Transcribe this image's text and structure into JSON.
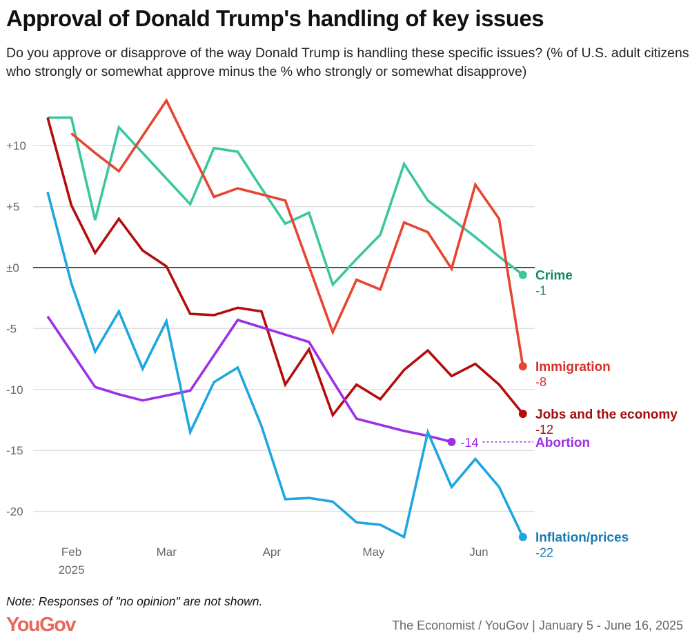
{
  "title": "Approval of Donald Trump's handling of key issues",
  "subtitle": "Do you approve or disapprove of the way Donald Trump is handling these specific issues? (% of U.S. adult citizens who strongly or somewhat approve minus the % who strongly or somewhat disapprove)",
  "note": "Note: Responses of \"no opinion\" are not shown.",
  "logo": "YouGov",
  "source": "The Economist / YouGov | January 5 - June 16, 2025",
  "chart_data": {
    "type": "line",
    "title": "Approval of Donald Trump's handling of key issues",
    "xlabel": "",
    "ylabel": "",
    "ylim": [
      -23,
      14
    ],
    "grid": true,
    "legend": "direct labels at line ends (right)",
    "y_ticks": [
      {
        "value": 10,
        "label": "+10"
      },
      {
        "value": 5,
        "label": "+5"
      },
      {
        "value": 0,
        "label": "±0"
      },
      {
        "value": -5,
        "label": "-5"
      },
      {
        "value": -10,
        "label": "-10"
      },
      {
        "value": -15,
        "label": "-15"
      },
      {
        "value": -20,
        "label": "-20"
      }
    ],
    "x_ticks": [
      {
        "date": "2025-02-01",
        "label": "Feb",
        "sublabel": "2025"
      },
      {
        "date": "2025-03-01",
        "label": "Mar"
      },
      {
        "date": "2025-04-01",
        "label": "Apr"
      },
      {
        "date": "2025-05-01",
        "label": "May"
      },
      {
        "date": "2025-06-01",
        "label": "Jun"
      }
    ],
    "x": [
      "2025-01-26",
      "2025-02-02",
      "2025-02-09",
      "2025-02-16",
      "2025-02-23",
      "2025-03-02",
      "2025-03-09",
      "2025-03-16",
      "2025-03-23",
      "2025-03-30",
      "2025-04-06",
      "2025-04-13",
      "2025-04-20",
      "2025-04-27",
      "2025-05-04",
      "2025-05-11",
      "2025-05-18",
      "2025-05-25",
      "2025-06-01",
      "2025-06-08",
      "2025-06-15"
    ],
    "series": [
      {
        "name": "Crime",
        "end_label": "-1",
        "color": "#3cc6a0",
        "label_color": "#138a64",
        "values": [
          12.3,
          12.3,
          3.9,
          11.5,
          9.4,
          7.3,
          5.2,
          9.8,
          9.5,
          6.5,
          3.6,
          4.5,
          -1.4,
          0.7,
          2.7,
          8.5,
          5.5,
          4.0,
          2.5,
          0.9,
          -0.6
        ]
      },
      {
        "name": "Immigration",
        "end_label": "-8",
        "color": "#e8442f",
        "label_color": "#d3312a",
        "values": [
          null,
          11.0,
          9.4,
          7.9,
          10.8,
          13.7,
          9.7,
          5.8,
          6.5,
          6.0,
          5.5,
          0.1,
          -5.3,
          -1.0,
          -1.8,
          3.7,
          2.9,
          -0.1,
          6.8,
          4.0,
          -8.1
        ]
      },
      {
        "name": "Jobs and the economy",
        "end_label": "-12",
        "color": "#b50c0c",
        "label_color": "#a50d0d",
        "values": [
          12.3,
          5.1,
          1.2,
          4.0,
          1.4,
          0.1,
          -3.8,
          -3.9,
          -3.3,
          -3.6,
          -9.6,
          -6.7,
          -12.1,
          -9.6,
          -10.8,
          -8.4,
          -6.8,
          -8.9,
          -7.9,
          -9.6,
          -12.0
        ]
      },
      {
        "name": "Abortion",
        "end_label": "-14",
        "color": "#9b30e8",
        "label_color": "#9b30e8",
        "values": [
          -4.0,
          -6.9,
          -9.8,
          -10.4,
          -10.9,
          -10.5,
          -10.1,
          -7.2,
          -4.3,
          -4.9,
          -5.5,
          -6.1,
          -9.3,
          -12.4,
          -12.9,
          -13.4,
          -13.8,
          -14.3,
          null,
          null,
          null
        ]
      },
      {
        "name": "Inflation/prices",
        "end_label": "-22",
        "color": "#1ea6e0",
        "label_color": "#1a7ab0",
        "values": [
          6.2,
          -1.3,
          -6.9,
          -3.6,
          -8.3,
          -4.4,
          -13.5,
          -9.4,
          -8.2,
          -13.0,
          -19.0,
          -18.9,
          -19.2,
          -20.9,
          -21.1,
          -22.1,
          -13.5,
          -18.0,
          -15.7,
          -18.0,
          -22.1
        ]
      }
    ]
  }
}
